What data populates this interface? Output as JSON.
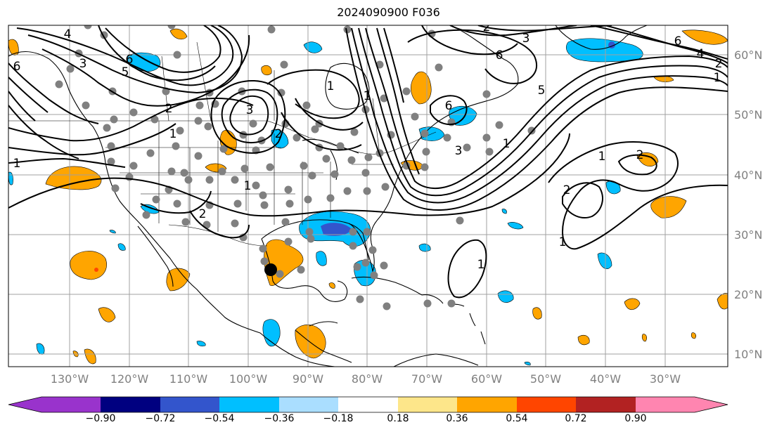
{
  "title": "2024090900 F036",
  "lat_labels": [
    "60°N",
    "50°N",
    "40°N",
    "30°N",
    "20°N",
    "10°N"
  ],
  "lon_labels": [
    "130°W",
    "120°W",
    "110°W",
    "100°W",
    "90°W",
    "80°W",
    "70°W",
    "60°W",
    "50°W",
    "40°W",
    "30°W"
  ],
  "colorbar": {
    "tick_labels": [
      "−0.90",
      "−0.72",
      "−0.54",
      "−0.36",
      "−0.18",
      "0.18",
      "0.36",
      "0.54",
      "0.72",
      "0.90"
    ],
    "colors": [
      "#9933cc",
      "#000080",
      "#3355cc",
      "#00bfff",
      "#aadeff",
      "#ffffff",
      "#fde68a",
      "#ffa500",
      "#ff4500",
      "#b22222",
      "#ff85b0"
    ],
    "under_color": "#9933cc",
    "over_color": "#ff85b0"
  },
  "contour_labels": [
    "4",
    "6",
    "3",
    "5",
    "6",
    "1",
    "1",
    "2",
    "3",
    "2",
    "1",
    "2",
    "1",
    "1",
    "2",
    "3",
    "6",
    "6",
    "4",
    "2",
    "1",
    "6",
    "3",
    "5",
    "1",
    "1",
    "2",
    "2",
    "1",
    "1"
  ],
  "colors": {
    "station_dot": "#808080",
    "hurricane_marker": "#000000",
    "contour": "#000000",
    "grid": "#a0a0a0",
    "coast": "#000000"
  }
}
